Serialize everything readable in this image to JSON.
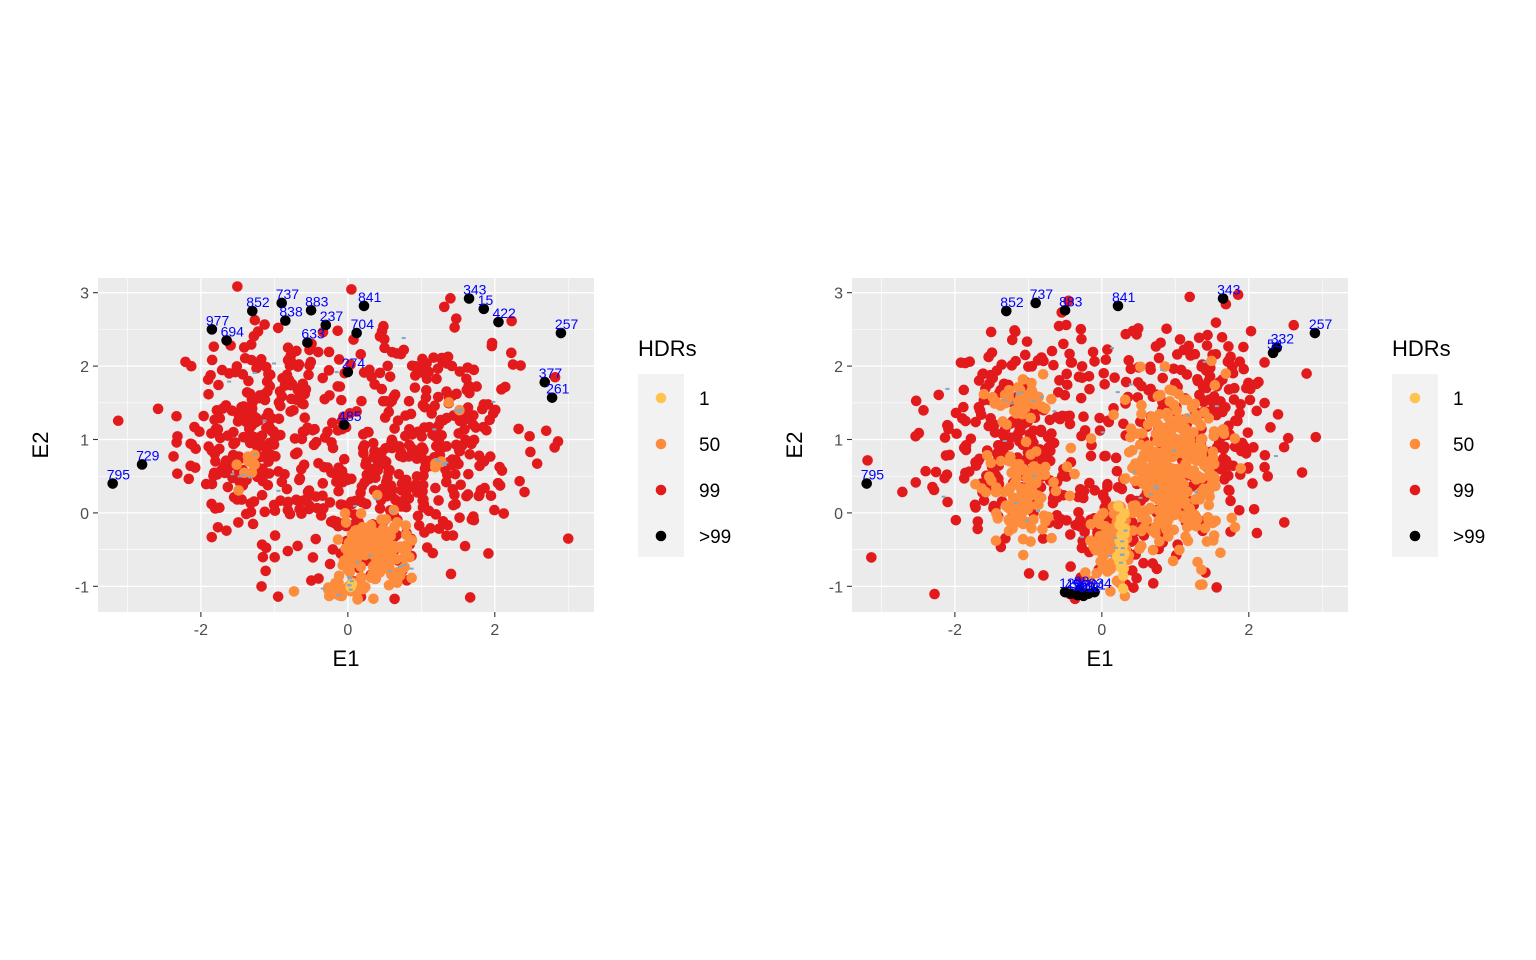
{
  "colors": {
    "panel_bg": "#ebebeb",
    "grid": "#ffffff",
    "hdr_1": "#fec44f",
    "hdr_50": "#fd8d3c",
    "hdr_99": "#e31a1c",
    "hdr_outlier": "#000000",
    "outlier_label": "#0000ff",
    "median_marks": "#7fa7c9"
  },
  "chart_data": [
    {
      "type": "scatter",
      "xlabel": "E1",
      "ylabel": "E2",
      "xlim": [
        -3.4,
        3.35
      ],
      "ylim": [
        -1.35,
        3.2
      ],
      "xticks": [
        -2,
        0,
        2
      ],
      "yticks": [
        -1,
        0,
        1,
        2,
        3
      ],
      "xtick_labels": [
        "-2",
        "0",
        "2"
      ],
      "ytick_labels": [
        "-1",
        "0",
        "1",
        "2",
        "3"
      ],
      "grid": true,
      "legend": {
        "title": "HDRs",
        "position": "right",
        "entries": [
          {
            "label": "1",
            "color": "#fec44f"
          },
          {
            "label": "50",
            "color": "#fd8d3c"
          },
          {
            "label": "99",
            "color": "#e31a1c"
          },
          {
            "label": ">99",
            "color": "#000000"
          }
        ]
      },
      "clusters": [
        {
          "region": "99",
          "cx": -1.2,
          "cy": 1.0,
          "sx": 0.55,
          "sy": 0.7,
          "n": 260
        },
        {
          "region": "99",
          "cx": 1.2,
          "cy": 1.0,
          "sx": 0.6,
          "sy": 0.75,
          "n": 260
        },
        {
          "region": "99",
          "cx": 0.2,
          "cy": 0.0,
          "sx": 0.5,
          "sy": 0.55,
          "n": 120
        },
        {
          "region": "99",
          "cx": 0.0,
          "cy": 2.0,
          "sx": 1.2,
          "sy": 0.3,
          "n": 40
        },
        {
          "region": "50",
          "cx": 0.4,
          "cy": -0.55,
          "sx": 0.25,
          "sy": 0.25,
          "n": 130
        },
        {
          "region": "50",
          "cx": -0.1,
          "cy": -1.05,
          "sx": 0.2,
          "sy": 0.06,
          "n": 30
        },
        {
          "region": "50",
          "cx": -1.35,
          "cy": 0.55,
          "sx": 0.1,
          "sy": 0.18,
          "n": 10
        },
        {
          "region": "50",
          "cx": 1.3,
          "cy": 0.65,
          "sx": 0.06,
          "sy": 0.05,
          "n": 4
        },
        {
          "region": "50",
          "cx": 1.5,
          "cy": 1.4,
          "sx": 0.04,
          "sy": 0.04,
          "n": 2
        },
        {
          "region": "1",
          "cx": 0.05,
          "cy": -0.95,
          "sx": 0.03,
          "sy": 0.03,
          "n": 2
        }
      ],
      "outliers": [
        {
          "id": "795",
          "x": -3.2,
          "y": 0.4
        },
        {
          "id": "729",
          "x": -2.8,
          "y": 0.66
        },
        {
          "id": "977",
          "x": -1.85,
          "y": 2.5
        },
        {
          "id": "694",
          "x": -1.65,
          "y": 2.35
        },
        {
          "id": "852",
          "x": -1.3,
          "y": 2.75
        },
        {
          "id": "737",
          "x": -0.9,
          "y": 2.86
        },
        {
          "id": "838",
          "x": -0.85,
          "y": 2.62
        },
        {
          "id": "883",
          "x": -0.5,
          "y": 2.76
        },
        {
          "id": "237",
          "x": -0.3,
          "y": 2.56
        },
        {
          "id": "633",
          "x": -0.55,
          "y": 2.32
        },
        {
          "id": "704",
          "x": 0.12,
          "y": 2.45
        },
        {
          "id": "841",
          "x": 0.22,
          "y": 2.82
        },
        {
          "id": "274",
          "x": 0.0,
          "y": 1.92
        },
        {
          "id": "485",
          "x": -0.05,
          "y": 1.2
        },
        {
          "id": "343",
          "x": 1.65,
          "y": 2.92
        },
        {
          "id": "15",
          "x": 1.85,
          "y": 2.78
        },
        {
          "id": "422",
          "x": 2.05,
          "y": 2.6
        },
        {
          "id": "257",
          "x": 2.9,
          "y": 2.45
        },
        {
          "id": "377",
          "x": 2.68,
          "y": 1.78
        },
        {
          "id": "261",
          "x": 2.78,
          "y": 1.57
        }
      ]
    },
    {
      "type": "scatter",
      "xlabel": "E1",
      "ylabel": "E2",
      "xlim": [
        -3.4,
        3.35
      ],
      "ylim": [
        -1.35,
        3.2
      ],
      "xticks": [
        -2,
        0,
        2
      ],
      "yticks": [
        -1,
        0,
        1,
        2,
        3
      ],
      "xtick_labels": [
        "-2",
        "0",
        "2"
      ],
      "ytick_labels": [
        "-1",
        "0",
        "1",
        "2",
        "3"
      ],
      "grid": true,
      "legend": {
        "title": "HDRs",
        "position": "right",
        "entries": [
          {
            "label": "1",
            "color": "#fec44f"
          },
          {
            "label": "50",
            "color": "#fd8d3c"
          },
          {
            "label": "99",
            "color": "#e31a1c"
          },
          {
            "label": ">99",
            "color": "#000000"
          }
        ]
      },
      "clusters": [
        {
          "region": "99",
          "cx": -1.2,
          "cy": 1.0,
          "sx": 0.6,
          "sy": 0.7,
          "n": 230
        },
        {
          "region": "99",
          "cx": 1.3,
          "cy": 1.2,
          "sx": 0.6,
          "sy": 0.7,
          "n": 230
        },
        {
          "region": "99",
          "cx": 0.0,
          "cy": -0.2,
          "sx": 0.55,
          "sy": 0.45,
          "n": 110
        },
        {
          "region": "99",
          "cx": 0.0,
          "cy": 2.0,
          "sx": 1.2,
          "sy": 0.3,
          "n": 40
        },
        {
          "region": "50",
          "cx": -1.1,
          "cy": 0.25,
          "sx": 0.25,
          "sy": 0.3,
          "n": 110
        },
        {
          "region": "50",
          "cx": -1.15,
          "cy": 1.55,
          "sx": 0.2,
          "sy": 0.15,
          "n": 45
        },
        {
          "region": "50",
          "cx": 1.0,
          "cy": 0.5,
          "sx": 0.35,
          "sy": 0.55,
          "n": 330
        },
        {
          "region": "50",
          "cx": 0.15,
          "cy": -0.45,
          "sx": 0.14,
          "sy": 0.28,
          "n": 90
        },
        {
          "region": "1",
          "cx": 0.27,
          "cy": -0.5,
          "sx": 0.03,
          "sy": 0.22,
          "n": 28
        }
      ],
      "outliers": [
        {
          "id": "795",
          "x": -3.2,
          "y": 0.4
        },
        {
          "id": "852",
          "x": -1.3,
          "y": 2.75
        },
        {
          "id": "737",
          "x": -0.9,
          "y": 2.86
        },
        {
          "id": "883",
          "x": -0.5,
          "y": 2.76
        },
        {
          "id": "841",
          "x": 0.22,
          "y": 2.82
        },
        {
          "id": "343",
          "x": 1.65,
          "y": 2.92
        },
        {
          "id": "332",
          "x": 2.38,
          "y": 2.25
        },
        {
          "id": "54",
          "x": 2.33,
          "y": 2.18
        },
        {
          "id": "257",
          "x": 2.9,
          "y": 2.45
        },
        {
          "id": "123",
          "x": -0.5,
          "y": -1.08
        },
        {
          "id": "456",
          "x": -0.42,
          "y": -1.1
        },
        {
          "id": "389",
          "x": -0.33,
          "y": -1.12
        },
        {
          "id": "612",
          "x": -0.25,
          "y": -1.13
        },
        {
          "id": "701",
          "x": -0.18,
          "y": -1.1
        },
        {
          "id": "88",
          "x": -0.3,
          "y": -1.05
        },
        {
          "id": "934",
          "x": -0.1,
          "y": -1.08
        }
      ]
    }
  ]
}
